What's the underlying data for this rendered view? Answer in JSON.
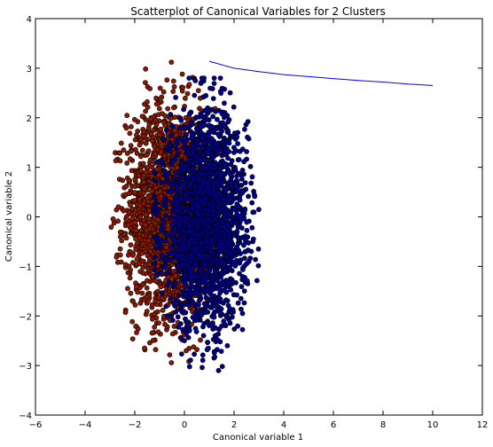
{
  "chart_data": {
    "type": "scatter",
    "title": "Scatterplot of Canonical Variables for 2 Clusters",
    "xlabel": "Canonical variable 1",
    "ylabel": "Canonical variable 2",
    "xlim": [
      -6,
      12
    ],
    "ylim": [
      -4,
      4
    ],
    "xticks": [
      -6,
      -4,
      -2,
      0,
      2,
      4,
      6,
      8,
      10,
      12
    ],
    "yticks": [
      -4,
      -3,
      -2,
      -1,
      0,
      1,
      2,
      3,
      4
    ],
    "grid": false,
    "colors": {
      "cluster_red": "#8b1a00",
      "cluster_blue": "#00008b",
      "line": "#0000ff"
    },
    "clusters": [
      {
        "color": "#8b1a00",
        "center": [
          -0.6,
          0.1
        ],
        "spread": [
          0.85,
          1.05
        ],
        "x_range": [
          -3.3,
          1.6
        ],
        "y_range": [
          -3.2,
          3.2
        ],
        "count": 2200
      },
      {
        "color": "#00008b",
        "center": [
          0.9,
          -0.1
        ],
        "spread": [
          0.8,
          1.05
        ],
        "x_range": [
          -1.2,
          3.2
        ],
        "y_range": [
          -3.3,
          2.8
        ],
        "count": 2200
      }
    ],
    "line_series": {
      "x": [
        1,
        2,
        3,
        4,
        5,
        6,
        7,
        8,
        9,
        10
      ],
      "y": [
        3.14,
        3.0,
        2.93,
        2.87,
        2.83,
        2.79,
        2.75,
        2.72,
        2.68,
        2.65
      ]
    }
  }
}
